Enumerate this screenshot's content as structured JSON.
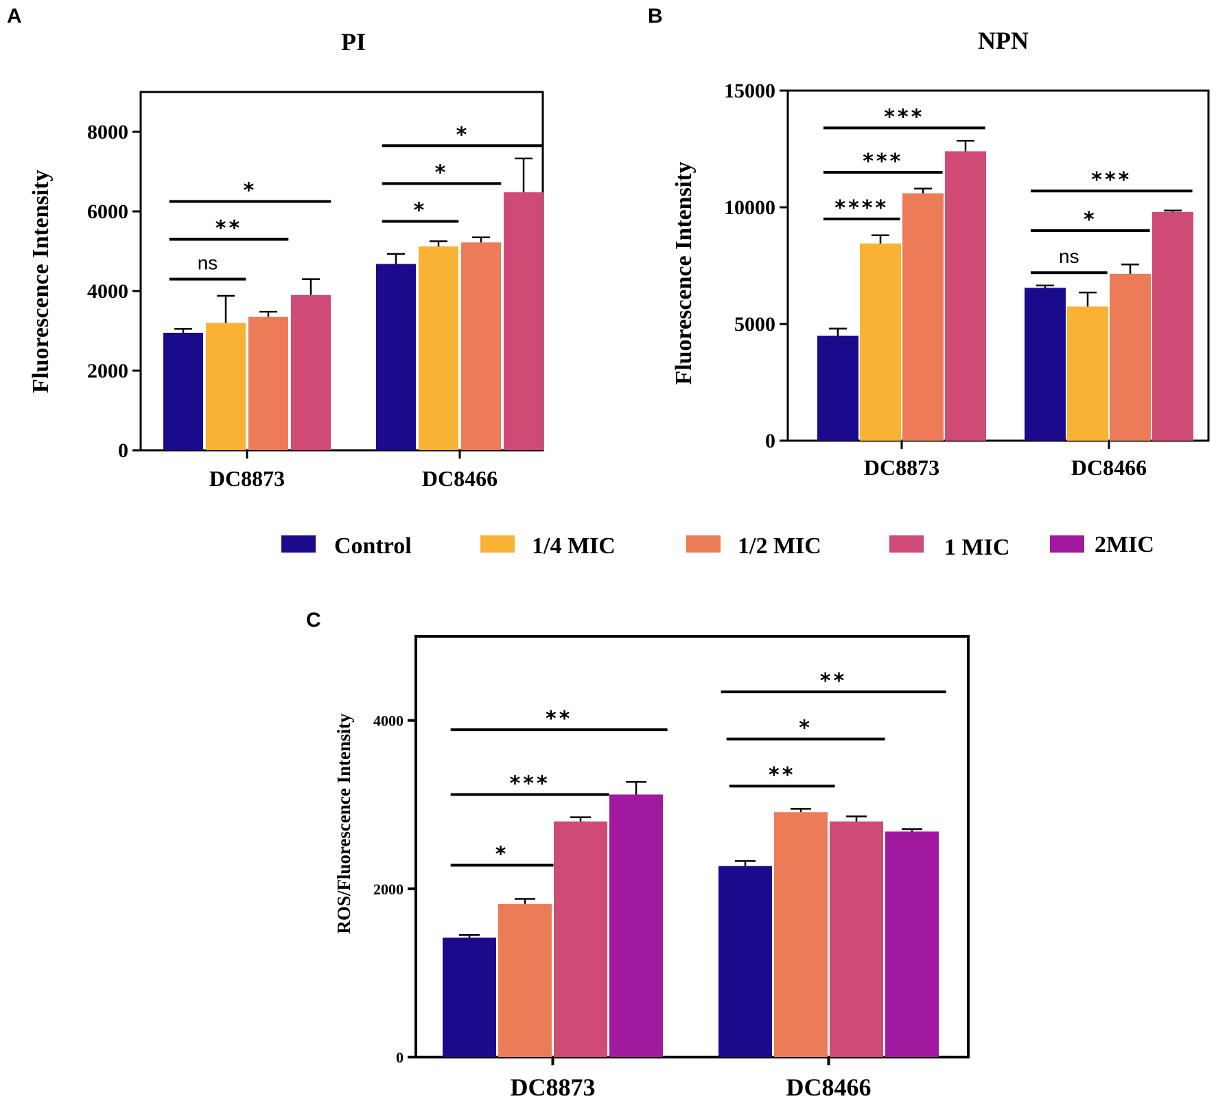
{
  "colors": {
    "Control": "#1a0b8c",
    "1/4 MIC": "#f9b233",
    "1/2 MIC": "#ec7b57",
    "1 MIC": "#cf4a74",
    "2MIC": "#a0199e"
  },
  "legend": {
    "items": [
      "Control",
      "1/4 MIC",
      "1/2 MIC",
      "1 MIC",
      "2MIC"
    ]
  },
  "chart_data": [
    {
      "panel": "A",
      "type": "bar",
      "title": "PI",
      "ylabel": "Fluorescence Intensity",
      "xlabel": "",
      "ylim": [
        0,
        9000
      ],
      "yticks": [
        0,
        2000,
        4000,
        6000,
        8000
      ],
      "categories": [
        "DC8873",
        "DC8466"
      ],
      "series": [
        {
          "name": "Control",
          "values": [
            2950,
            4680
          ],
          "errors": [
            100,
            250
          ]
        },
        {
          "name": "1/4 MIC",
          "values": [
            3200,
            5120
          ],
          "errors": [
            680,
            130
          ]
        },
        {
          "name": "1/2 MIC",
          "values": [
            3350,
            5220
          ],
          "errors": [
            130,
            130
          ]
        },
        {
          "name": "1 MIC",
          "values": [
            3900,
            6480
          ],
          "errors": [
            400,
            850
          ]
        }
      ],
      "significance": [
        {
          "label": "ns",
          "category": 0,
          "from": 0,
          "to": 1.8,
          "y": 4300
        },
        {
          "label": "**",
          "category": 0,
          "from": 0,
          "to": 2.8,
          "y": 5300
        },
        {
          "label": "*",
          "category": 0,
          "from": 0,
          "to": 3.8,
          "y": 6250
        },
        {
          "label": "*",
          "category": 1,
          "from": 0,
          "to": 1.8,
          "y": 5750
        },
        {
          "label": "*",
          "category": 1,
          "from": 0,
          "to": 2.8,
          "y": 6700
        },
        {
          "label": "*",
          "category": 1,
          "from": 0,
          "to": 3.8,
          "y": 7650
        }
      ]
    },
    {
      "panel": "B",
      "type": "bar",
      "title": "NPN",
      "ylabel": "Fluorescence Intensity",
      "xlabel": "",
      "ylim": [
        0,
        15000
      ],
      "yticks": [
        0,
        5000,
        10000,
        15000
      ],
      "categories": [
        "DC8873",
        "DC8466"
      ],
      "series": [
        {
          "name": "Control",
          "values": [
            4500,
            6550
          ],
          "errors": [
            300,
            100
          ]
        },
        {
          "name": "1/4 MIC",
          "values": [
            8450,
            5750
          ],
          "errors": [
            350,
            600
          ]
        },
        {
          "name": "1/2 MIC",
          "values": [
            10600,
            7150
          ],
          "errors": [
            200,
            400
          ]
        },
        {
          "name": "1 MIC",
          "values": [
            12400,
            9800
          ],
          "errors": [
            450,
            60
          ]
        }
      ],
      "significance": [
        {
          "label": "****",
          "category": 0,
          "from": 0,
          "to": 1.8,
          "y": 9500
        },
        {
          "label": "***",
          "category": 0,
          "from": 0,
          "to": 2.8,
          "y": 11500
        },
        {
          "label": "***",
          "category": 0,
          "from": 0,
          "to": 3.8,
          "y": 13400
        },
        {
          "label": "ns",
          "category": 1,
          "from": 0,
          "to": 1.8,
          "y": 7200
        },
        {
          "label": "*",
          "category": 1,
          "from": 0,
          "to": 2.8,
          "y": 9000
        },
        {
          "label": "***",
          "category": 1,
          "from": 0,
          "to": 3.8,
          "y": 10700
        }
      ]
    },
    {
      "panel": "C",
      "type": "bar",
      "title": "",
      "ylabel": "ROS/Fluorescence Intensity",
      "xlabel": "",
      "ylim": [
        0,
        5000
      ],
      "yticks": [
        0,
        2000,
        4000
      ],
      "categories": [
        "DC8873",
        "DC8466"
      ],
      "series": [
        {
          "name": "Control",
          "values": [
            1420,
            2270
          ],
          "errors": [
            30,
            60
          ]
        },
        {
          "name": "1/2 MIC",
          "values": [
            1820,
            2910
          ],
          "errors": [
            60,
            40
          ]
        },
        {
          "name": "1 MIC",
          "values": [
            2800,
            2800
          ],
          "errors": [
            50,
            60
          ]
        },
        {
          "name": "2MIC",
          "values": [
            3120,
            2680
          ],
          "errors": [
            150,
            30
          ]
        }
      ],
      "significance": [
        {
          "label": "*",
          "category": 0,
          "from": 0,
          "to": 1.85,
          "y": 2280
        },
        {
          "label": "***",
          "category": 0,
          "from": 0,
          "to": 2.85,
          "y": 3120
        },
        {
          "label": "**",
          "category": 0,
          "from": 0,
          "to": 3.9,
          "y": 3890
        },
        {
          "label": "**",
          "category": 1,
          "from": 0.05,
          "to": 1.95,
          "y": 3220
        },
        {
          "label": "*",
          "category": 1,
          "from": 0,
          "to": 2.85,
          "y": 3780
        },
        {
          "label": "**",
          "category": 1,
          "from": -0.1,
          "to": 3.95,
          "y": 4340
        }
      ]
    }
  ]
}
